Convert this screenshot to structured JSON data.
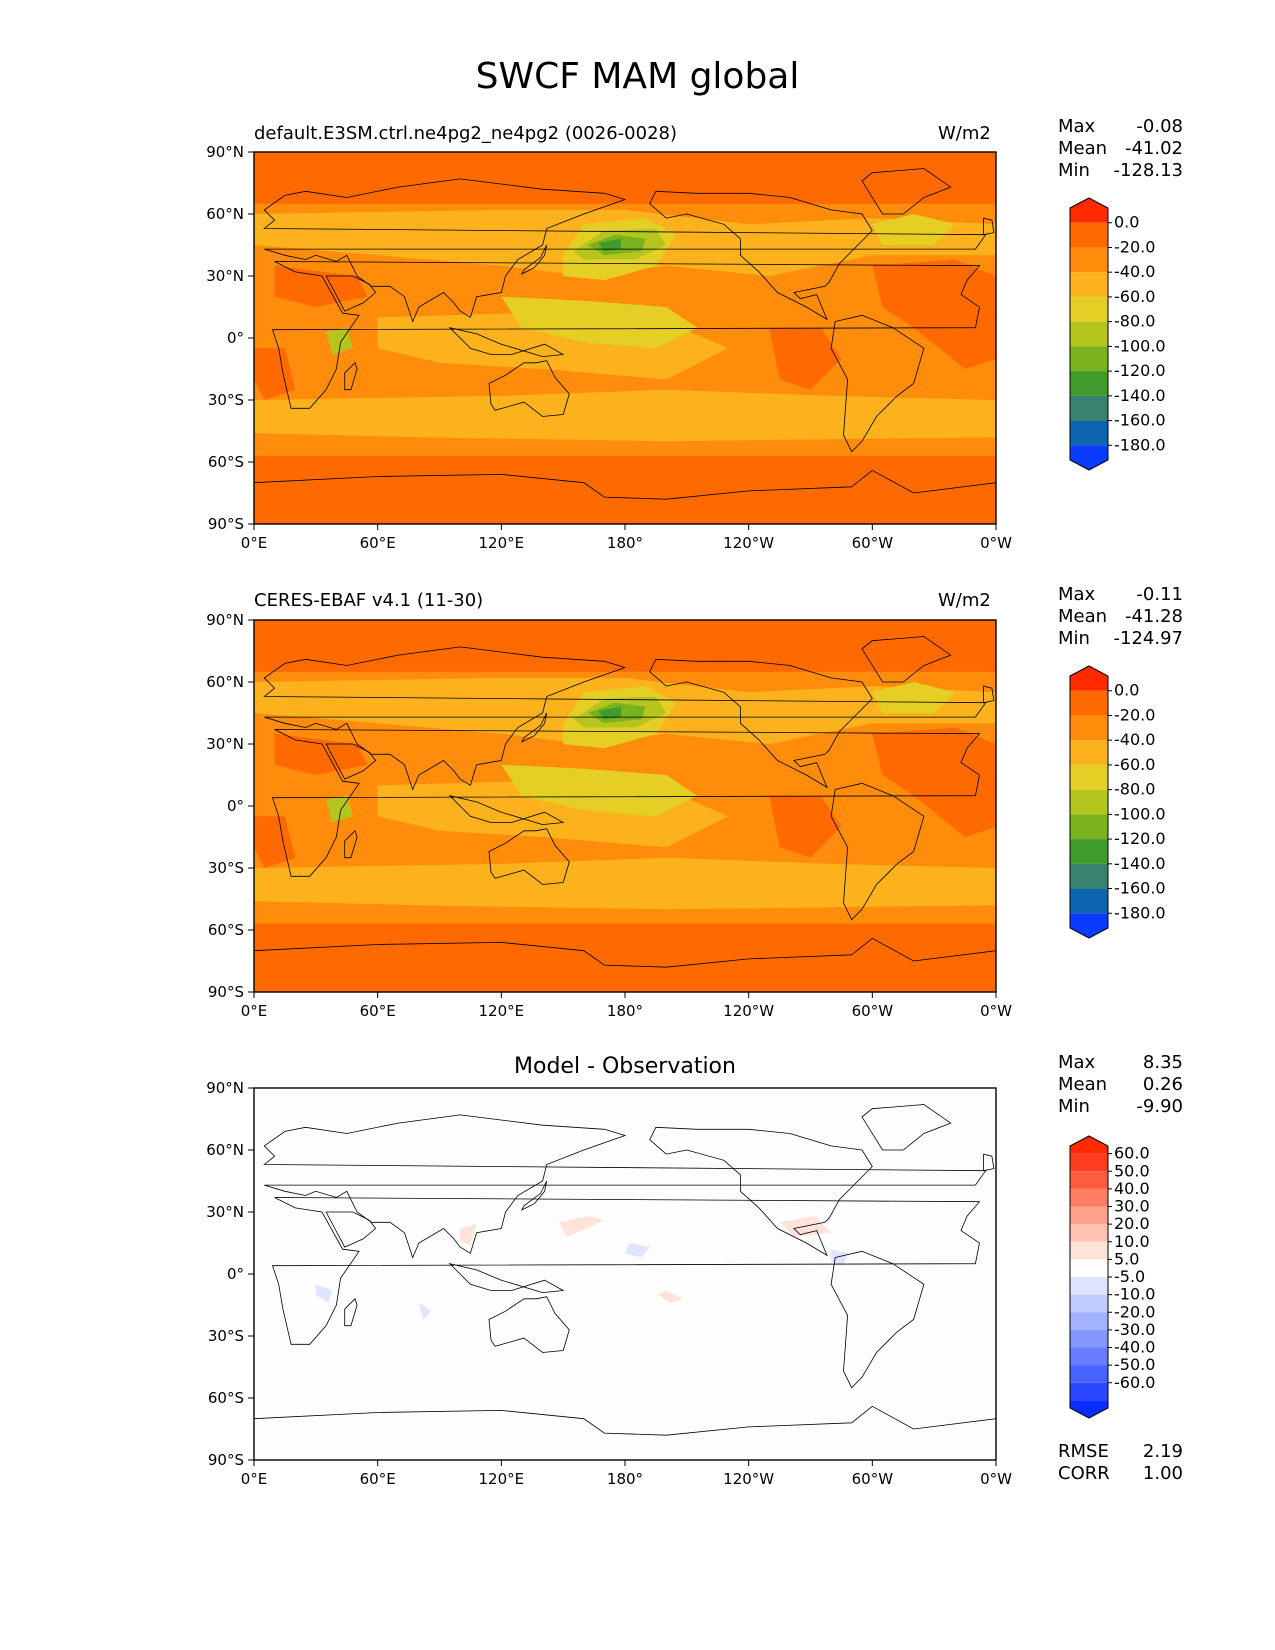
{
  "figure_title": "SWCF MAM global",
  "x_ticks": [
    "0°E",
    "60°E",
    "120°E",
    "180°",
    "120°W",
    "60°W",
    "0°W"
  ],
  "y_ticks": [
    "90°N",
    "60°N",
    "30°N",
    "0°",
    "30°S",
    "60°S",
    "90°S"
  ],
  "panels": [
    {
      "title": "default.E3SM.ctrl.ne4pg2_ne4pg2 (0026-0028)",
      "units": "W/m2",
      "stats": [
        {
          "label": "Max",
          "value": "-0.08"
        },
        {
          "label": "Mean",
          "value": "-41.02"
        },
        {
          "label": "Min",
          "value": "-128.13"
        }
      ],
      "colorbar": {
        "labels": [
          "0.0",
          "-20.0",
          "-40.0",
          "-60.0",
          "-80.0",
          "-100.0",
          "-120.0",
          "-140.0",
          "-160.0",
          "-180.0"
        ],
        "colors": [
          "#ff2a00",
          "#ff6a00",
          "#ff8c0a",
          "#fbb21c",
          "#e5cf24",
          "#b6c41e",
          "#79b21c",
          "#3f9c2a",
          "#3a8270",
          "#0f66b0",
          "#0a3cff"
        ]
      }
    },
    {
      "title": "CERES-EBAF v4.1 (11-30)",
      "units": "W/m2",
      "stats": [
        {
          "label": "Max",
          "value": "-0.11"
        },
        {
          "label": "Mean",
          "value": "-41.28"
        },
        {
          "label": "Min",
          "value": "-124.97"
        }
      ],
      "colorbar": {
        "labels": [
          "0.0",
          "-20.0",
          "-40.0",
          "-60.0",
          "-80.0",
          "-100.0",
          "-120.0",
          "-140.0",
          "-160.0",
          "-180.0"
        ],
        "colors": [
          "#ff2a00",
          "#ff6a00",
          "#ff8c0a",
          "#fbb21c",
          "#e5cf24",
          "#b6c41e",
          "#79b21c",
          "#3f9c2a",
          "#3a8270",
          "#0f66b0",
          "#0a3cff"
        ]
      }
    },
    {
      "title": "Model - Observation",
      "units": "",
      "stats": [
        {
          "label": "Max",
          "value": "8.35"
        },
        {
          "label": "Mean",
          "value": "0.26"
        },
        {
          "label": "Min",
          "value": "-9.90"
        }
      ],
      "extra_stats": [
        {
          "label": "RMSE",
          "value": "2.19"
        },
        {
          "label": "CORR",
          "value": "1.00"
        }
      ],
      "colorbar": {
        "labels": [
          "60.0",
          "50.0",
          "40.0",
          "30.0",
          "20.0",
          "10.0",
          "5.0",
          "-5.0",
          "-10.0",
          "-20.0",
          "-30.0",
          "-40.0",
          "-50.0",
          "-60.0"
        ],
        "colors": [
          "#ff2a00",
          "#ff3c20",
          "#ff5b3c",
          "#ff7e64",
          "#ffa28c",
          "#ffc3b2",
          "#ffe2d8",
          "#ffffff",
          "#dfe4ff",
          "#c2ccff",
          "#a3b2ff",
          "#8497ff",
          "#667dff",
          "#4862ff",
          "#2a47ff",
          "#0a2cff"
        ]
      }
    }
  ]
}
